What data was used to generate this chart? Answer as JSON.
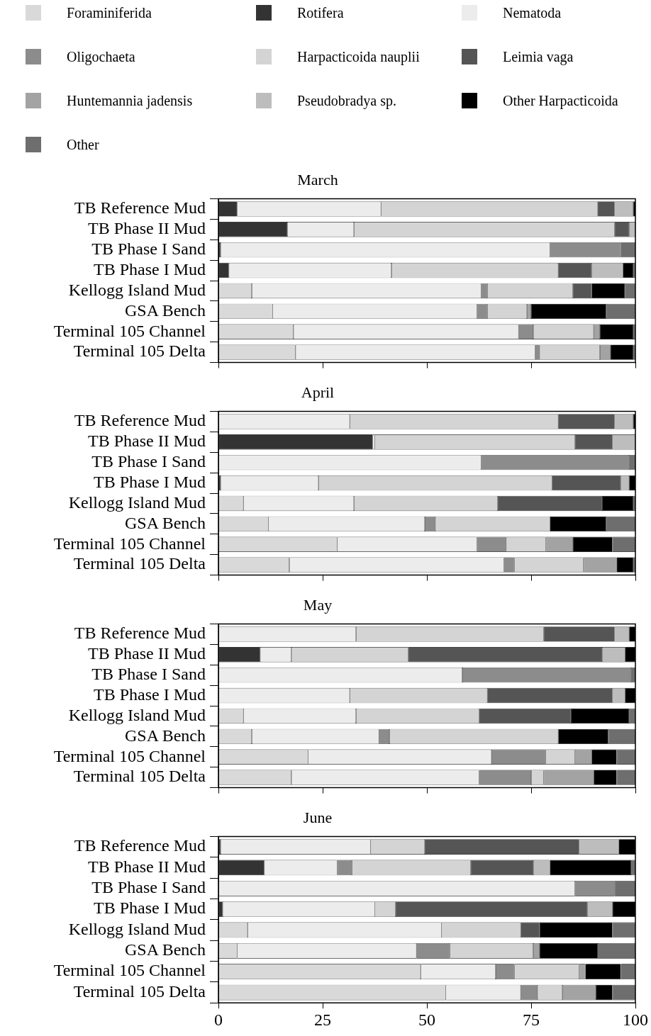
{
  "chart_data": [
    {
      "type": "bar",
      "title": "March",
      "orientation": "horizontal",
      "stacked": true,
      "legend": "top",
      "grid": false,
      "tick_labels": "y",
      "xlim": [
        0,
        100
      ],
      "xticks": [
        0,
        25,
        50,
        75,
        100
      ],
      "categories": [
        "TB Reference Mud",
        "TB Phase II Mud",
        "TB Phase I Sand",
        "TB Phase I Mud",
        "Kellogg Island Mud",
        "GSA Bench",
        "Terminal 105 Channel",
        "Terminal 105 Delta"
      ],
      "series": [
        {
          "name": "Foraminiferida",
          "color": "#d9d9d9",
          "values": [
            0,
            0,
            0,
            0,
            8,
            13,
            18,
            18.5
          ]
        },
        {
          "name": "Rotifera",
          "color": "#333333",
          "values": [
            4.5,
            16.5,
            0.5,
            2.5,
            0,
            0,
            0,
            0
          ]
        },
        {
          "name": "Nematoda",
          "color": "#ececec",
          "values": [
            34.5,
            16,
            79,
            39,
            55,
            49,
            54,
            57.5
          ]
        },
        {
          "name": "Oligochaeta",
          "color": "#8c8c8c",
          "values": [
            0,
            0,
            17,
            0,
            1.5,
            2.5,
            3.5,
            1
          ]
        },
        {
          "name": "Harpacticoida nauplii",
          "color": "#d4d4d4",
          "values": [
            52,
            62.5,
            0,
            40,
            20.5,
            9.5,
            14.5,
            14.5
          ]
        },
        {
          "name": "Leimia vaga",
          "color": "#555555",
          "values": [
            4,
            3.5,
            0,
            8,
            4.5,
            0,
            0,
            0
          ]
        },
        {
          "name": "Huntemannia jadensis",
          "color": "#a3a3a3",
          "values": [
            0,
            0,
            0,
            0,
            0,
            1,
            1.5,
            2.5
          ]
        },
        {
          "name": "Pseudobradya sp.",
          "color": "#bdbdbd",
          "values": [
            4.5,
            1.5,
            0,
            7.5,
            0,
            0,
            0,
            0
          ]
        },
        {
          "name": "Other Harpacticoida",
          "color": "#000000",
          "values": [
            0.5,
            0,
            0,
            2.5,
            8,
            18,
            8,
            5.5
          ]
        },
        {
          "name": "Other",
          "color": "#6e6e6e",
          "values": [
            0,
            0,
            3.5,
            0.5,
            2.5,
            7,
            0.5,
            0.5
          ]
        }
      ]
    },
    {
      "type": "bar",
      "title": "April",
      "orientation": "horizontal",
      "stacked": true,
      "grid": false,
      "tick_labels": "y",
      "xlim": [
        0,
        100
      ],
      "xticks": [
        0,
        25,
        50,
        75,
        100
      ],
      "categories": [
        "TB Reference Mud",
        "TB Phase II Mud",
        "TB Phase I Sand",
        "TB Phase I Mud",
        "Kellogg Island Mud",
        "GSA Bench",
        "Terminal 105 Channel",
        "Terminal 105 Delta"
      ],
      "series": [
        {
          "color": "#d9d9d9",
          "values": [
            0,
            0,
            0,
            0,
            6,
            12,
            28.5,
            17
          ]
        },
        {
          "color": "#333333",
          "values": [
            0,
            37,
            0,
            0.5,
            0,
            0,
            0,
            0
          ]
        },
        {
          "color": "#ececec",
          "values": [
            31.5,
            0.5,
            63,
            23.5,
            26.5,
            37.5,
            33.5,
            51.5
          ]
        },
        {
          "color": "#8c8c8c",
          "values": [
            0,
            0,
            35.5,
            0,
            0,
            2.5,
            7,
            2.5
          ]
        },
        {
          "color": "#d4d4d4",
          "values": [
            50,
            48,
            0,
            56,
            34.5,
            27.5,
            9.5,
            16.5
          ]
        },
        {
          "color": "#555555",
          "values": [
            13.5,
            9,
            0,
            16.5,
            25,
            0,
            0,
            0
          ]
        },
        {
          "color": "#a3a3a3",
          "values": [
            0,
            0,
            0,
            0,
            0,
            0,
            6.5,
            8
          ]
        },
        {
          "color": "#bdbdbd",
          "values": [
            4.5,
            5.5,
            0,
            2,
            0,
            0,
            0,
            0
          ]
        },
        {
          "color": "#000000",
          "values": [
            0.5,
            0,
            0,
            1.5,
            7.5,
            13.5,
            9.5,
            4
          ]
        },
        {
          "color": "#6e6e6e",
          "values": [
            0,
            0,
            1.5,
            0,
            0.5,
            7,
            5.5,
            0.5
          ]
        }
      ]
    },
    {
      "type": "bar",
      "title": "May",
      "orientation": "horizontal",
      "stacked": true,
      "grid": false,
      "tick_labels": "y",
      "xlim": [
        0,
        100
      ],
      "xticks": [
        0,
        25,
        50,
        75,
        100
      ],
      "categories": [
        "TB Reference Mud",
        "TB Phase II Mud",
        "TB Phase I Sand",
        "TB Phase I Mud",
        "Kellogg Island Mud",
        "GSA Bench",
        "Terminal 105 Channel",
        "Terminal 105 Delta"
      ],
      "series": [
        {
          "color": "#d9d9d9",
          "values": [
            0,
            0,
            0,
            0,
            6,
            8,
            21.5,
            17.5
          ]
        },
        {
          "color": "#333333",
          "values": [
            0,
            10,
            0,
            0,
            0,
            0,
            0,
            0
          ]
        },
        {
          "color": "#ececec",
          "values": [
            33,
            7.5,
            58.5,
            31.5,
            27,
            30.5,
            44,
            45
          ]
        },
        {
          "color": "#8c8c8c",
          "values": [
            0,
            0,
            40.5,
            0,
            0,
            2.5,
            13,
            12.5
          ]
        },
        {
          "color": "#d4d4d4",
          "values": [
            45,
            28,
            0,
            33,
            29.5,
            40.5,
            7,
            3
          ]
        },
        {
          "color": "#555555",
          "values": [
            17,
            46.5,
            0,
            30,
            22,
            0,
            0,
            0
          ]
        },
        {
          "color": "#a3a3a3",
          "values": [
            0,
            0,
            0,
            0,
            0,
            0,
            4,
            12
          ]
        },
        {
          "color": "#bdbdbd",
          "values": [
            3.5,
            5.5,
            0,
            3,
            0,
            0,
            0,
            0
          ]
        },
        {
          "color": "#000000",
          "values": [
            1.5,
            2.5,
            0,
            2.5,
            14,
            12,
            6,
            5.5
          ]
        },
        {
          "color": "#6e6e6e",
          "values": [
            0,
            0,
            1,
            0,
            1.5,
            6.5,
            4.5,
            4.5
          ]
        }
      ]
    },
    {
      "type": "bar",
      "title": "June",
      "orientation": "horizontal",
      "stacked": true,
      "grid": false,
      "xlim": [
        0,
        100
      ],
      "xticks": [
        0,
        25,
        50,
        75,
        100
      ],
      "categories": [
        "TB Reference Mud",
        "TB Phase II Mud",
        "TB Phase I Sand",
        "TB Phase I Mud",
        "Kellogg Island Mud",
        "GSA Bench",
        "Terminal 105 Channel",
        "Terminal 105 Delta"
      ],
      "series": [
        {
          "color": "#d9d9d9",
          "values": [
            0,
            0,
            0,
            0,
            7,
            4.5,
            48.5,
            54.5
          ]
        },
        {
          "color": "#333333",
          "values": [
            0.5,
            11,
            0,
            1,
            0,
            0,
            0,
            0
          ]
        },
        {
          "color": "#ececec",
          "values": [
            36,
            17.5,
            85.5,
            36.5,
            46.5,
            43,
            18,
            18
          ]
        },
        {
          "color": "#8c8c8c",
          "values": [
            0,
            3.5,
            9.5,
            0,
            0,
            8,
            4.5,
            4
          ]
        },
        {
          "color": "#d4d4d4",
          "values": [
            13,
            28.5,
            0,
            5,
            19,
            20,
            15.5,
            6
          ]
        },
        {
          "color": "#555555",
          "values": [
            37,
            15,
            0,
            46,
            4.5,
            0,
            0,
            0
          ]
        },
        {
          "color": "#a3a3a3",
          "values": [
            0,
            0,
            0,
            0,
            0,
            1.5,
            1.5,
            8
          ]
        },
        {
          "color": "#bdbdbd",
          "values": [
            9.5,
            4,
            0,
            6,
            0,
            0,
            0,
            0
          ]
        },
        {
          "color": "#000000",
          "values": [
            4,
            19.5,
            0,
            5.5,
            17.5,
            14,
            8.5,
            4
          ]
        },
        {
          "color": "#6e6e6e",
          "values": [
            0,
            1,
            5,
            0,
            5.5,
            9,
            3.5,
            5.5
          ]
        }
      ]
    }
  ]
}
